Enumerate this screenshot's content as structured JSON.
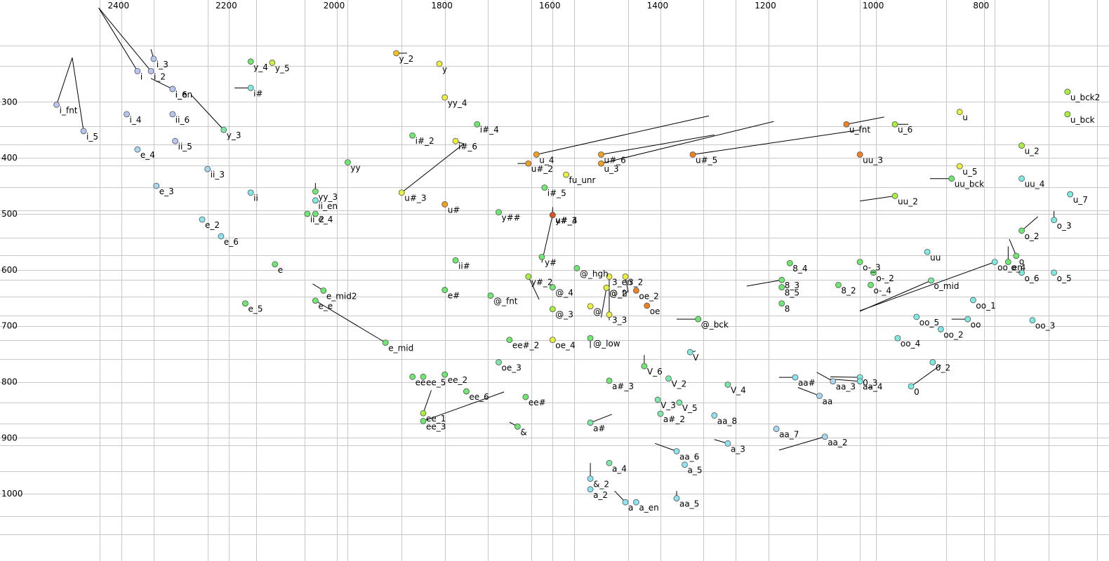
{
  "chart_data": {
    "type": "scatter",
    "title": "",
    "xlabel": "",
    "ylabel": "",
    "x_reversed": true,
    "y_reversed": true,
    "xlim": [
      2625,
      568
    ],
    "ylim": [
      118,
      1120
    ],
    "grid": true,
    "x_ticks": [
      2400,
      2200,
      2000,
      1800,
      1600,
      1400,
      1200,
      1000,
      800
    ],
    "y_ticks": [
      300,
      400,
      500,
      600,
      700,
      800,
      900,
      1000
    ],
    "grid_x": [
      2440,
      2340,
      2240,
      2150,
      2060,
      1980,
      1880,
      1720,
      1640,
      1560,
      1460,
      1320,
      1260,
      1110,
      1030,
      870,
      780,
      680,
      590
    ],
    "grid_y": [
      200,
      236,
      344,
      376,
      413,
      453,
      494,
      543,
      574,
      618,
      648,
      682,
      725,
      759,
      837,
      875,
      913,
      960,
      1040,
      1073
    ],
    "points": [
      {
        "label": "i_fnt",
        "x": 2520,
        "y": 305,
        "color": "#b7c6f0",
        "vx": 2491,
        "vy": 221
      },
      {
        "label": "i_5",
        "x": 2470,
        "y": 352,
        "color": "#b7c6f0",
        "vx": 2491,
        "vy": 221
      },
      {
        "label": "i_3",
        "x": 2340,
        "y": 223,
        "color": "#b7c6f0",
        "vx": 2345,
        "vy": 206
      },
      {
        "label": "i_2",
        "x": 2345,
        "y": 245,
        "color": "#b7c6f0",
        "vx": 2442,
        "vy": 132
      },
      {
        "label": "i",
        "x": 2370,
        "y": 245,
        "color": "#b7c6f0",
        "vx": 2442,
        "vy": 132
      },
      {
        "label": "i_en",
        "x": 2305,
        "y": 277,
        "color": "#b7c6f0",
        "vx": 2345,
        "vy": 258
      },
      {
        "label": "i_6",
        "x": 2305,
        "y": 277,
        "color": "#b7c6f0"
      },
      {
        "label": "i_4",
        "x": 2390,
        "y": 322,
        "color": "#b7c6f0"
      },
      {
        "label": "ii_6",
        "x": 2305,
        "y": 322,
        "color": "#b7c6f0"
      },
      {
        "label": "ii_5",
        "x": 2300,
        "y": 370,
        "color": "#b7c6f0"
      },
      {
        "label": "e_4",
        "x": 2370,
        "y": 385,
        "color": "#a6d8f2"
      },
      {
        "label": "ii_3",
        "x": 2240,
        "y": 420,
        "color": "#a6d8f2"
      },
      {
        "label": "e_3",
        "x": 2335,
        "y": 450,
        "color": "#a6d8f2"
      },
      {
        "label": "e_2",
        "x": 2250,
        "y": 510,
        "color": "#8fe3f0"
      },
      {
        "label": "e_6",
        "x": 2215,
        "y": 540,
        "color": "#8fe3f0"
      },
      {
        "label": "i#",
        "x": 2160,
        "y": 275,
        "color": "#7eeae2",
        "vx": 2190,
        "vy": 275
      },
      {
        "label": "y_3",
        "x": 2210,
        "y": 350,
        "color": "#7ce8a8",
        "vx": 2270,
        "vy": 288
      },
      {
        "label": "y_4",
        "x": 2160,
        "y": 228,
        "color": "#6ee870"
      },
      {
        "label": "y_5",
        "x": 2120,
        "y": 230,
        "color": "#c6ef4c"
      },
      {
        "label": "ii",
        "x": 2160,
        "y": 462,
        "color": "#7eeae2"
      },
      {
        "label": "e",
        "x": 2115,
        "y": 590,
        "color": "#6ee870"
      },
      {
        "label": "e_5",
        "x": 2170,
        "y": 660,
        "color": "#6ee870"
      },
      {
        "label": "yy",
        "x": 1980,
        "y": 408,
        "color": "#6ee870"
      },
      {
        "label": "yy_3",
        "x": 2040,
        "y": 460,
        "color": "#6ee870",
        "vx": 2040,
        "vy": 445
      },
      {
        "label": "ii_en",
        "x": 2040,
        "y": 476,
        "color": "#7eeae2"
      },
      {
        "label": "ii_2",
        "x": 2055,
        "y": 500,
        "color": "#6ee870"
      },
      {
        "label": "e_4",
        "x": 2040,
        "y": 500,
        "color": "#6ee870"
      },
      {
        "label": "e_mid2",
        "x": 2025,
        "y": 637,
        "color": "#6ee870",
        "vx": 2045,
        "vy": 625
      },
      {
        "label": "e_e",
        "x": 2040,
        "y": 655,
        "color": "#6ee870",
        "vx": 1910,
        "vy": 730
      },
      {
        "label": "e_mid",
        "x": 1910,
        "y": 730,
        "color": "#6ee870"
      },
      {
        "label": "y_2",
        "x": 1890,
        "y": 213,
        "color": "#f0c020",
        "vx": 1870,
        "vy": 213
      },
      {
        "label": "y",
        "x": 1810,
        "y": 232,
        "color": "#eaf040"
      },
      {
        "label": "yy_4",
        "x": 1800,
        "y": 292,
        "color": "#eaf040"
      },
      {
        "label": "i#_4",
        "x": 1740,
        "y": 340,
        "color": "#6ee870"
      },
      {
        "label": "i#_2",
        "x": 1860,
        "y": 360,
        "color": "#6ee870"
      },
      {
        "label": "i#_6",
        "x": 1780,
        "y": 370,
        "color": "#eaf040",
        "vx": 1765,
        "vy": 375
      },
      {
        "label": "u#_3",
        "x": 1880,
        "y": 462,
        "color": "#eaf040",
        "vx": 1765,
        "vy": 375
      },
      {
        "label": "u#",
        "x": 1800,
        "y": 483,
        "color": "#f0a020"
      },
      {
        "label": "ii#",
        "x": 1780,
        "y": 583,
        "color": "#6ee870"
      },
      {
        "label": "e#",
        "x": 1800,
        "y": 636,
        "color": "#6ee870"
      },
      {
        "label": "y##",
        "x": 1700,
        "y": 497,
        "color": "#6ee870"
      },
      {
        "label": "@_fnt",
        "x": 1715,
        "y": 646,
        "color": "#6ee870"
      },
      {
        "label": "ee#_2",
        "x": 1680,
        "y": 725,
        "color": "#6ee870"
      },
      {
        "label": "oe_3",
        "x": 1700,
        "y": 765,
        "color": "#7ce8a8"
      },
      {
        "label": "ee_2",
        "x": 1800,
        "y": 787,
        "color": "#6ee870"
      },
      {
        "label": "ee_5",
        "x": 1840,
        "y": 791,
        "color": "#6ee870"
      },
      {
        "label": "ee",
        "x": 1860,
        "y": 791,
        "color": "#6ee870"
      },
      {
        "label": "ee_6",
        "x": 1760,
        "y": 817,
        "color": "#6ee870"
      },
      {
        "label": "ee_1",
        "x": 1840,
        "y": 856,
        "color": "#a8ef40",
        "vx": 1825,
        "vy": 815
      },
      {
        "label": "ee_3",
        "x": 1840,
        "y": 870,
        "color": "#6ee870",
        "vx": 1690,
        "vy": 818
      },
      {
        "label": "ee#",
        "x": 1650,
        "y": 827,
        "color": "#6ee870"
      },
      {
        "label": "&",
        "x": 1665,
        "y": 880,
        "color": "#6ee870",
        "vx": 1680,
        "vy": 872
      },
      {
        "label": "u_4",
        "x": 1630,
        "y": 394,
        "color": "#f0a020",
        "vx": 1310,
        "vy": 325
      },
      {
        "label": "u#_2",
        "x": 1645,
        "y": 410,
        "color": "#f0a020",
        "vx": 1665,
        "vy": 410
      },
      {
        "label": "i#_5",
        "x": 1615,
        "y": 453,
        "color": "#6ee870"
      },
      {
        "label": "fu_unr",
        "x": 1575,
        "y": 430,
        "color": "#eaf040"
      },
      {
        "label": "y#_3",
        "x": 1600,
        "y": 502,
        "color": "#e05020",
        "vx": 1600,
        "vy": 488
      },
      {
        "label": "u#_4",
        "x": 1600,
        "y": 502,
        "color": "#e05020",
        "vx": 1620,
        "vy": 587
      },
      {
        "label": "y#",
        "x": 1620,
        "y": 577,
        "color": "#6ee870"
      },
      {
        "label": "@_hgh",
        "x": 1555,
        "y": 597,
        "color": "#6ee870"
      },
      {
        "label": "y#_2",
        "x": 1645,
        "y": 612,
        "color": "#a8ef40",
        "vx": 1625,
        "vy": 653
      },
      {
        "label": "@_4",
        "x": 1600,
        "y": 631,
        "color": "#6ee870"
      },
      {
        "label": "@_3",
        "x": 1600,
        "y": 670,
        "color": "#a8ef40"
      },
      {
        "label": "oe_4",
        "x": 1600,
        "y": 725,
        "color": "#eaf040"
      },
      {
        "label": "u#_6",
        "x": 1510,
        "y": 394,
        "color": "#f0a020",
        "vx": 1300,
        "vy": 359
      },
      {
        "label": "u_3",
        "x": 1510,
        "y": 410,
        "color": "#f0a020",
        "vx": 1190,
        "vy": 335
      },
      {
        "label": "3_en",
        "x": 1495,
        "y": 612,
        "color": "#eaf040",
        "vx": 1495,
        "vy": 690
      },
      {
        "label": "3_2",
        "x": 1465,
        "y": 612,
        "color": "#eaf040",
        "vx": 1460,
        "vy": 640
      },
      {
        "label": "@_2",
        "x": 1500,
        "y": 632,
        "color": "#eaf040",
        "vx": 1510,
        "vy": 685
      },
      {
        "label": "@_fr",
        "x": 1500,
        "y": 632,
        "color": "#eaf040"
      },
      {
        "label": "@",
        "x": 1530,
        "y": 665,
        "color": "#eaf040"
      },
      {
        "label": "3_3",
        "x": 1495,
        "y": 680,
        "color": "#eaf040"
      },
      {
        "label": "oe_2",
        "x": 1445,
        "y": 637,
        "color": "#f08020"
      },
      {
        "label": "oe",
        "x": 1425,
        "y": 664,
        "color": "#f08020"
      },
      {
        "label": "@_low",
        "x": 1530,
        "y": 722,
        "color": "#6ee870",
        "vx": 1530,
        "vy": 740
      },
      {
        "label": "u#_5",
        "x": 1340,
        "y": 394,
        "color": "#f08020",
        "vx": 1030,
        "vy": 350
      },
      {
        "label": "@_bck",
        "x": 1330,
        "y": 688,
        "color": "#6ee870",
        "vx": 1370,
        "vy": 688
      },
      {
        "label": "V",
        "x": 1345,
        "y": 747,
        "color": "#7eeae2",
        "vx": 1335,
        "vy": 745
      },
      {
        "label": "V_6",
        "x": 1430,
        "y": 772,
        "color": "#6ee870",
        "vx": 1430,
        "vy": 752
      },
      {
        "label": "a#_3",
        "x": 1495,
        "y": 798,
        "color": "#6ee870"
      },
      {
        "label": "V_2",
        "x": 1385,
        "y": 794,
        "color": "#7ce8a8"
      },
      {
        "label": "V_3",
        "x": 1405,
        "y": 832,
        "color": "#7ce8a8"
      },
      {
        "label": "V_5",
        "x": 1365,
        "y": 837,
        "color": "#7ce8a8"
      },
      {
        "label": "a#_2",
        "x": 1400,
        "y": 857,
        "color": "#7ce8a8"
      },
      {
        "label": "a#",
        "x": 1530,
        "y": 873,
        "color": "#7ce8a8",
        "vx": 1490,
        "vy": 858
      },
      {
        "label": "aa_6",
        "x": 1370,
        "y": 924,
        "color": "#8fe3f0",
        "vx": 1410,
        "vy": 910
      },
      {
        "label": "a_4",
        "x": 1495,
        "y": 945,
        "color": "#7ce8a8"
      },
      {
        "label": "a_5",
        "x": 1355,
        "y": 948,
        "color": "#8fe3f0"
      },
      {
        "label": "&_2",
        "x": 1530,
        "y": 973,
        "color": "#8fe3f0",
        "vx": 1530,
        "vy": 945
      },
      {
        "label": "a_2",
        "x": 1530,
        "y": 992,
        "color": "#8fe3f0"
      },
      {
        "label": "a_en",
        "x": 1445,
        "y": 1015,
        "color": "#8fe3f0"
      },
      {
        "label": "a",
        "x": 1465,
        "y": 1015,
        "color": "#8fe3f0",
        "vx": 1485,
        "vy": 995
      },
      {
        "label": "aa_5",
        "x": 1370,
        "y": 1008,
        "color": "#8fe3f0",
        "vx": 1370,
        "vy": 995
      },
      {
        "label": "aa_8",
        "x": 1300,
        "y": 860,
        "color": "#8fe3f0"
      },
      {
        "label": "V_4",
        "x": 1275,
        "y": 805,
        "color": "#7ce8a8"
      },
      {
        "label": "a_3",
        "x": 1275,
        "y": 910,
        "color": "#8fe3f0",
        "vx": 1300,
        "vy": 903
      },
      {
        "label": "aa_7",
        "x": 1185,
        "y": 884,
        "color": "#a6d8f2"
      },
      {
        "label": "aa_2",
        "x": 1095,
        "y": 898,
        "color": "#a6d8f2",
        "vx": 1180,
        "vy": 922
      },
      {
        "label": "aa#",
        "x": 1150,
        "y": 792,
        "color": "#8fe3f0",
        "vx": 1180,
        "vy": 792
      },
      {
        "label": "aa",
        "x": 1105,
        "y": 825,
        "color": "#a6d8f2",
        "vx": 1145,
        "vy": 810
      },
      {
        "label": "aa_3",
        "x": 1080,
        "y": 799,
        "color": "#a6d8f2",
        "vx": 1110,
        "vy": 783
      },
      {
        "label": "0_3",
        "x": 1030,
        "y": 792,
        "color": "#7eeae2",
        "vx": 1085,
        "vy": 791
      },
      {
        "label": "aa_4",
        "x": 1030,
        "y": 799,
        "color": "#7eeae2",
        "vx": 1085,
        "vy": 795
      },
      {
        "label": "0_2",
        "x": 895,
        "y": 765,
        "color": "#7eeae2"
      },
      {
        "label": "0",
        "x": 935,
        "y": 808,
        "color": "#7eeae2",
        "vx": 880,
        "vy": 770
      },
      {
        "label": "8_4",
        "x": 1160,
        "y": 588,
        "color": "#6ee870"
      },
      {
        "label": "8_3",
        "x": 1175,
        "y": 618,
        "color": "#6ee870",
        "vx": 1240,
        "vy": 629
      },
      {
        "label": "8_5",
        "x": 1175,
        "y": 631,
        "color": "#6ee870"
      },
      {
        "label": "8",
        "x": 1175,
        "y": 660,
        "color": "#6ee870"
      },
      {
        "label": "8_2",
        "x": 1070,
        "y": 627,
        "color": "#6ee870"
      },
      {
        "label": "o-_3",
        "x": 1030,
        "y": 586,
        "color": "#6ee870"
      },
      {
        "label": "o-_2",
        "x": 1005,
        "y": 605,
        "color": "#6ee870"
      },
      {
        "label": "o-_4",
        "x": 1010,
        "y": 627,
        "color": "#6ee870"
      },
      {
        "label": "o_mid",
        "x": 898,
        "y": 619,
        "color": "#7ce8a8",
        "vx": 1030,
        "vy": 674
      },
      {
        "label": "uu",
        "x": 905,
        "y": 568,
        "color": "#7eeae2"
      },
      {
        "label": "oo_5",
        "x": 925,
        "y": 684,
        "color": "#7eeae2"
      },
      {
        "label": "oo_4",
        "x": 960,
        "y": 722,
        "color": "#7eeae2"
      },
      {
        "label": "oo_2",
        "x": 880,
        "y": 706,
        "color": "#7eeae2"
      },
      {
        "label": "oo",
        "x": 830,
        "y": 688,
        "color": "#7eeae2",
        "vx": 860,
        "vy": 688
      },
      {
        "label": "oo_1",
        "x": 820,
        "y": 654,
        "color": "#7eeae2"
      },
      {
        "label": "oo_en",
        "x": 780,
        "y": 586,
        "color": "#7eeae2",
        "vx": 1030,
        "vy": 673
      },
      {
        "label": "o_4",
        "x": 755,
        "y": 586,
        "color": "#6ee870",
        "vx": 755,
        "vy": 558
      },
      {
        "label": "o",
        "x": 740,
        "y": 575,
        "color": "#6ee870",
        "vx": 753,
        "vy": 545
      },
      {
        "label": "o_6",
        "x": 730,
        "y": 605,
        "color": "#7eeae2"
      },
      {
        "label": "o_5",
        "x": 670,
        "y": 605,
        "color": "#7eeae2"
      },
      {
        "label": "oo_3",
        "x": 710,
        "y": 690,
        "color": "#7eeae2"
      },
      {
        "label": "o_2",
        "x": 730,
        "y": 530,
        "color": "#6ee870",
        "vx": 700,
        "vy": 505
      },
      {
        "label": "o_3",
        "x": 670,
        "y": 511,
        "color": "#7eeae2",
        "vx": 670,
        "vy": 495
      },
      {
        "label": "u_fnt",
        "x": 1055,
        "y": 340,
        "color": "#f08020",
        "vx": 985,
        "vy": 327
      },
      {
        "label": "uu_3",
        "x": 1030,
        "y": 394,
        "color": "#f08020"
      },
      {
        "label": "u_6",
        "x": 965,
        "y": 340,
        "color": "#a8ef40",
        "vx": 940,
        "vy": 340
      },
      {
        "label": "uu_2",
        "x": 965,
        "y": 468,
        "color": "#a8ef40",
        "vx": 1030,
        "vy": 477
      },
      {
        "label": "uu_bck",
        "x": 860,
        "y": 437,
        "color": "#6ee870",
        "vx": 900,
        "vy": 437
      },
      {
        "label": "u",
        "x": 845,
        "y": 318,
        "color": "#eaf040"
      },
      {
        "label": "u_5",
        "x": 845,
        "y": 415,
        "color": "#eaf040"
      },
      {
        "label": "u_2",
        "x": 730,
        "y": 378,
        "color": "#a8ef40"
      },
      {
        "label": "uu_4",
        "x": 730,
        "y": 437,
        "color": "#7eeae2"
      },
      {
        "label": "u_7",
        "x": 640,
        "y": 465,
        "color": "#7eeae2"
      },
      {
        "label": "u_bck2",
        "x": 645,
        "y": 282,
        "color": "#a8ef40"
      },
      {
        "label": "u_bck",
        "x": 645,
        "y": 322,
        "color": "#a8ef40"
      }
    ]
  }
}
